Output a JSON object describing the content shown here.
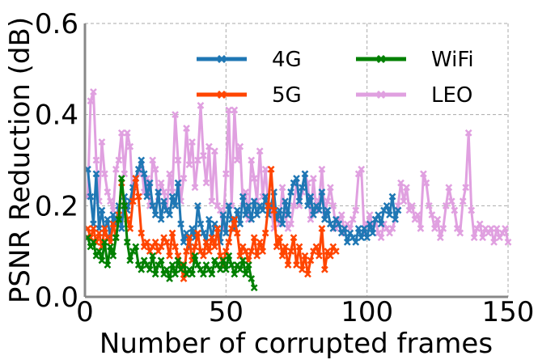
{
  "chart_data": {
    "type": "line",
    "xlabel": "Number of corrupted frames",
    "ylabel": "PSNR Reduction (dB)",
    "xlim": [
      0,
      150
    ],
    "ylim": [
      0.0,
      0.6
    ],
    "xticks": [
      "0",
      "50",
      "100",
      "150"
    ],
    "yticks": [
      "0.0",
      "0.2",
      "0.4",
      "0.6"
    ],
    "grid": true,
    "legend_position": "top-right",
    "series": [
      {
        "name": "4G",
        "color": "#1f77b4",
        "x": [
          1,
          2,
          3,
          4,
          5,
          6,
          7,
          8,
          9,
          10,
          11,
          12,
          13,
          14,
          15,
          16,
          17,
          18,
          19,
          20,
          21,
          22,
          23,
          24,
          25,
          26,
          27,
          28,
          29,
          30,
          31,
          32,
          33,
          34,
          35,
          36,
          37,
          38,
          39,
          40,
          41,
          42,
          43,
          44,
          45,
          46,
          47,
          48,
          49,
          50,
          51,
          52,
          53,
          54,
          55,
          56,
          57,
          58,
          59,
          60,
          61,
          62,
          63,
          64,
          65,
          66,
          67,
          68,
          69,
          70,
          71,
          72,
          73,
          74,
          75,
          76,
          77,
          78,
          79,
          80,
          81,
          82,
          83,
          84,
          85,
          86,
          87,
          88,
          89,
          90,
          91,
          92,
          93,
          94,
          95,
          96,
          97,
          98,
          99,
          100,
          101,
          102,
          103,
          104,
          105,
          106,
          107,
          108,
          109,
          110,
          111
        ],
        "values": [
          0.28,
          0.22,
          0.16,
          0.27,
          0.15,
          0.19,
          0.14,
          0.17,
          0.13,
          0.18,
          0.16,
          0.2,
          0.15,
          0.22,
          0.19,
          0.21,
          0.24,
          0.26,
          0.28,
          0.3,
          0.27,
          0.22,
          0.25,
          0.2,
          0.18,
          0.23,
          0.17,
          0.21,
          0.19,
          0.18,
          0.22,
          0.2,
          0.25,
          0.16,
          0.12,
          0.14,
          0.11,
          0.15,
          0.13,
          0.2,
          0.16,
          0.14,
          0.12,
          0.17,
          0.13,
          0.16,
          0.15,
          0.12,
          0.18,
          0.14,
          0.2,
          0.17,
          0.15,
          0.19,
          0.16,
          0.22,
          0.18,
          0.2,
          0.17,
          0.21,
          0.18,
          0.2,
          0.19,
          0.22,
          0.18,
          0.2,
          0.23,
          0.17,
          0.19,
          0.16,
          0.21,
          0.18,
          0.23,
          0.25,
          0.26,
          0.21,
          0.24,
          0.27,
          0.2,
          0.22,
          0.18,
          0.2,
          0.19,
          0.23,
          0.17,
          0.19,
          0.16,
          0.15,
          0.17,
          0.16,
          0.14,
          0.15,
          0.12,
          0.14,
          0.13,
          0.12,
          0.15,
          0.13,
          0.15,
          0.13,
          0.16,
          0.14,
          0.17,
          0.18,
          0.16,
          0.19,
          0.2,
          0.18,
          0.22,
          0.17,
          0.19
        ]
      },
      {
        "name": "5G",
        "color": "#ff4500",
        "x": [
          1,
          2,
          3,
          4,
          5,
          6,
          7,
          8,
          9,
          10,
          11,
          12,
          13,
          14,
          15,
          16,
          17,
          18,
          19,
          20,
          21,
          22,
          23,
          24,
          25,
          26,
          27,
          28,
          29,
          30,
          31,
          32,
          33,
          34,
          35,
          36,
          37,
          38,
          39,
          40,
          41,
          42,
          43,
          44,
          45,
          46,
          47,
          48,
          49,
          50,
          51,
          52,
          53,
          54,
          55,
          56,
          57,
          58,
          59,
          60,
          61,
          62,
          63,
          64,
          65,
          66,
          67,
          68,
          69,
          70,
          71,
          72,
          73,
          74,
          75,
          76,
          77,
          78,
          79,
          80,
          81,
          82,
          83,
          84,
          85,
          86,
          87,
          88,
          89
        ],
        "values": [
          0.15,
          0.13,
          0.15,
          0.12,
          0.14,
          0.11,
          0.15,
          0.13,
          0.12,
          0.16,
          0.13,
          0.18,
          0.25,
          0.2,
          0.17,
          0.15,
          0.21,
          0.26,
          0.22,
          0.14,
          0.11,
          0.12,
          0.1,
          0.11,
          0.12,
          0.1,
          0.11,
          0.13,
          0.12,
          0.09,
          0.14,
          0.11,
          0.09,
          0.07,
          0.04,
          0.1,
          0.13,
          0.08,
          0.11,
          0.14,
          0.1,
          0.09,
          0.12,
          0.1,
          0.13,
          0.11,
          0.15,
          0.09,
          0.07,
          0.1,
          0.12,
          0.15,
          0.17,
          0.14,
          0.09,
          0.11,
          0.1,
          0.08,
          0.1,
          0.13,
          0.09,
          0.12,
          0.1,
          0.14,
          0.2,
          0.28,
          0.19,
          0.11,
          0.13,
          0.09,
          0.11,
          0.07,
          0.1,
          0.13,
          0.07,
          0.11,
          0.06,
          0.09,
          0.05,
          0.08,
          0.1,
          0.11,
          0.09,
          0.15,
          0.06,
          0.1,
          0.09,
          0.11,
          0.1
        ]
      },
      {
        "name": "WiFi",
        "color": "#008000",
        "x": [
          1,
          2,
          3,
          4,
          5,
          6,
          7,
          8,
          9,
          10,
          11,
          12,
          13,
          14,
          15,
          16,
          17,
          18,
          19,
          20,
          21,
          22,
          23,
          24,
          25,
          26,
          27,
          28,
          29,
          30,
          31,
          32,
          33,
          34,
          35,
          36,
          37,
          38,
          39,
          40,
          41,
          42,
          43,
          44,
          45,
          46,
          47,
          48,
          49,
          50,
          51,
          52,
          53,
          54,
          55,
          56,
          57,
          58,
          59,
          60
        ],
        "values": [
          0.13,
          0.11,
          0.12,
          0.09,
          0.1,
          0.08,
          0.12,
          0.07,
          0.11,
          0.09,
          0.13,
          0.17,
          0.26,
          0.2,
          0.12,
          0.08,
          0.1,
          0.11,
          0.07,
          0.06,
          0.08,
          0.07,
          0.06,
          0.09,
          0.05,
          0.07,
          0.08,
          0.05,
          0.06,
          0.04,
          0.07,
          0.05,
          0.08,
          0.06,
          0.07,
          0.05,
          0.06,
          0.05,
          0.09,
          0.07,
          0.06,
          0.05,
          0.07,
          0.06,
          0.05,
          0.08,
          0.07,
          0.06,
          0.08,
          0.06,
          0.09,
          0.07,
          0.05,
          0.07,
          0.06,
          0.08,
          0.05,
          0.07,
          0.04,
          0.02
        ]
      },
      {
        "name": "LEO",
        "color": "#e0a0e0",
        "x": [
          1,
          2,
          3,
          4,
          5,
          6,
          7,
          8,
          9,
          10,
          11,
          12,
          13,
          14,
          15,
          16,
          17,
          18,
          19,
          20,
          21,
          22,
          23,
          24,
          25,
          26,
          27,
          28,
          29,
          30,
          31,
          32,
          33,
          34,
          35,
          36,
          37,
          38,
          39,
          40,
          41,
          42,
          43,
          44,
          45,
          46,
          47,
          48,
          49,
          50,
          51,
          52,
          53,
          54,
          55,
          56,
          57,
          58,
          59,
          60,
          61,
          62,
          63,
          64,
          65,
          66,
          67,
          68,
          69,
          70,
          71,
          72,
          73,
          74,
          75,
          76,
          77,
          78,
          79,
          80,
          81,
          82,
          83,
          84,
          85,
          86,
          87,
          88,
          89,
          90,
          91,
          92,
          93,
          94,
          95,
          96,
          97,
          98,
          99,
          100,
          101,
          102,
          103,
          104,
          105,
          106,
          107,
          108,
          109,
          110,
          111,
          112,
          113,
          114,
          115,
          116,
          117,
          118,
          119,
          120,
          121,
          122,
          123,
          124,
          125,
          126,
          127,
          128,
          129,
          130,
          131,
          132,
          133,
          134,
          135,
          136,
          137,
          138,
          139,
          140,
          141,
          142,
          143,
          144,
          145,
          146,
          147,
          148,
          149,
          150
        ],
        "values": [
          0.22,
          0.43,
          0.45,
          0.3,
          0.21,
          0.34,
          0.27,
          0.23,
          0.21,
          0.19,
          0.28,
          0.3,
          0.36,
          0.27,
          0.36,
          0.33,
          0.21,
          0.25,
          0.27,
          0.29,
          0.23,
          0.26,
          0.2,
          0.3,
          0.28,
          0.21,
          0.25,
          0.23,
          0.19,
          0.27,
          0.23,
          0.4,
          0.3,
          0.21,
          0.26,
          0.37,
          0.29,
          0.34,
          0.24,
          0.3,
          0.42,
          0.31,
          0.25,
          0.33,
          0.21,
          0.32,
          0.2,
          0.19,
          0.15,
          0.27,
          0.41,
          0.2,
          0.41,
          0.3,
          0.33,
          0.2,
          0.23,
          0.17,
          0.3,
          0.26,
          0.21,
          0.32,
          0.22,
          0.28,
          0.2,
          0.19,
          0.15,
          0.18,
          0.16,
          0.24,
          0.18,
          0.15,
          0.16,
          0.2,
          0.25,
          0.2,
          0.23,
          0.27,
          0.25,
          0.17,
          0.26,
          0.19,
          0.21,
          0.28,
          0.18,
          0.21,
          0.24,
          0.2,
          0.15,
          0.17,
          0.18,
          0.14,
          0.16,
          0.15,
          0.17,
          0.19,
          0.27,
          0.28,
          0.14,
          0.16,
          0.18,
          0.15,
          0.17,
          0.14,
          0.13,
          0.16,
          0.15,
          0.14,
          0.15,
          0.17,
          0.2,
          0.25,
          0.21,
          0.24,
          0.19,
          0.2,
          0.17,
          0.18,
          0.15,
          0.27,
          0.25,
          0.2,
          0.18,
          0.15,
          0.17,
          0.13,
          0.15,
          0.2,
          0.24,
          0.21,
          0.19,
          0.15,
          0.14,
          0.21,
          0.24,
          0.36,
          0.19,
          0.13,
          0.15,
          0.16,
          0.13,
          0.15,
          0.14,
          0.15,
          0.12,
          0.15,
          0.13,
          0.14,
          0.15,
          0.12
        ]
      }
    ]
  }
}
